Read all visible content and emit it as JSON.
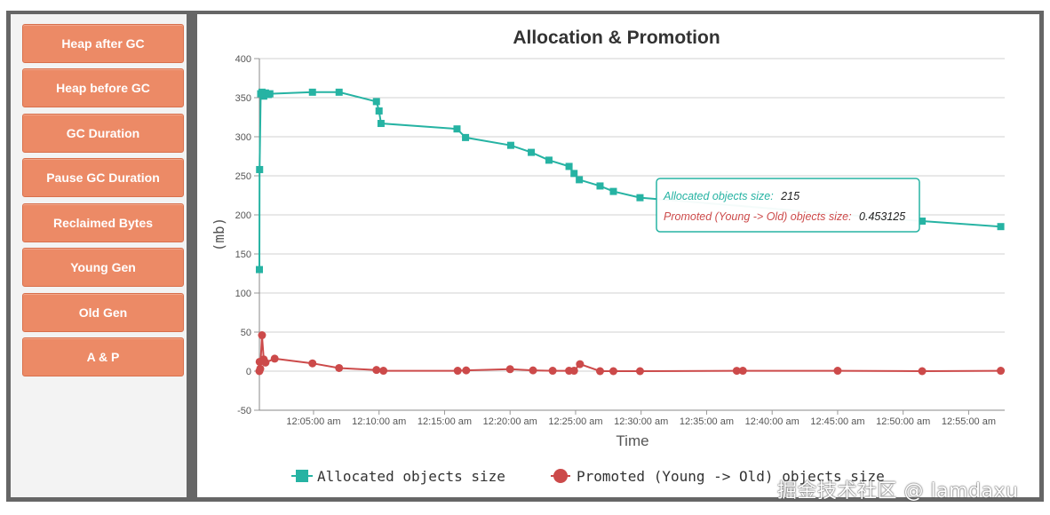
{
  "sidebar": {
    "items": [
      {
        "label": "Heap after GC"
      },
      {
        "label": "Heap before GC"
      },
      {
        "label": "GC Duration"
      },
      {
        "label": "Pause GC Duration"
      },
      {
        "label": "Reclaimed Bytes"
      },
      {
        "label": "Young Gen"
      },
      {
        "label": "Old Gen"
      },
      {
        "label": "A & P"
      }
    ]
  },
  "watermark": "掘金技术社区 @ lamdaxu",
  "colors": {
    "allocated": "#26b3a3",
    "promoted": "#cc4a4a",
    "button": "#ec8a66"
  },
  "chart_data": {
    "type": "line",
    "title": "Allocation & Promotion",
    "xlabel": "Time",
    "ylabel": "(mb)",
    "ylim": [
      -50,
      400
    ],
    "yticks": [
      -50,
      0,
      50,
      100,
      150,
      200,
      250,
      300,
      350,
      400
    ],
    "xlim": [
      "12:00:52",
      "12:57:45"
    ],
    "xticks": [
      "12:05:00 am",
      "12:10:00 am",
      "12:15:00 am",
      "12:20:00 am",
      "12:25:00 am",
      "12:30:00 am",
      "12:35:00 am",
      "12:40:00 am",
      "12:45:00 am",
      "12:50:00 am",
      "12:55:00 am"
    ],
    "grid": true,
    "legend_position": "bottom",
    "series": [
      {
        "name": "Allocated objects size",
        "marker": "square",
        "points": [
          [
            "12:00:52",
            130
          ],
          [
            "12:00:53",
            258
          ],
          [
            "12:00:58",
            355
          ],
          [
            "12:01:04",
            357
          ],
          [
            "12:01:12",
            352
          ],
          [
            "12:01:20",
            356
          ],
          [
            "12:01:33",
            354
          ],
          [
            "12:01:40",
            355
          ],
          [
            "12:04:55",
            357
          ],
          [
            "12:06:57",
            357
          ],
          [
            "12:09:48",
            345
          ],
          [
            "12:10:00",
            333
          ],
          [
            "12:10:09",
            317
          ],
          [
            "12:15:57",
            310
          ],
          [
            "12:16:36",
            299
          ],
          [
            "12:20:03",
            289
          ],
          [
            "12:21:37",
            280
          ],
          [
            "12:22:58",
            270
          ],
          [
            "12:24:30",
            262
          ],
          [
            "12:24:53",
            253
          ],
          [
            "12:25:17",
            245
          ],
          [
            "12:26:52",
            237
          ],
          [
            "12:27:53",
            230
          ],
          [
            "12:29:55",
            222
          ],
          [
            "12:51:27",
            192
          ],
          [
            "12:57:27",
            185
          ]
        ]
      },
      {
        "name": "Promoted (Young -> Old) objects size",
        "marker": "circle",
        "points": [
          [
            "12:00:52",
            0
          ],
          [
            "12:00:53",
            12
          ],
          [
            "12:00:56",
            3
          ],
          [
            "12:01:04",
            46
          ],
          [
            "12:01:12",
            15
          ],
          [
            "12:01:20",
            11
          ],
          [
            "12:02:02",
            16
          ],
          [
            "12:04:55",
            10
          ],
          [
            "12:06:57",
            4
          ],
          [
            "12:09:48",
            1.5
          ],
          [
            "12:10:20",
            0.5
          ],
          [
            "12:16:00",
            0.5
          ],
          [
            "12:16:39",
            1
          ],
          [
            "12:20:00",
            2.5
          ],
          [
            "12:21:45",
            1
          ],
          [
            "12:23:15",
            0.5
          ],
          [
            "12:24:30",
            0.5
          ],
          [
            "12:24:53",
            0.5
          ],
          [
            "12:25:20",
            9
          ],
          [
            "12:26:52",
            0
          ],
          [
            "12:27:53",
            0
          ],
          [
            "12:29:55",
            0
          ],
          [
            "12:37:18",
            0.45
          ],
          [
            "12:37:46",
            0.5
          ],
          [
            "12:45:00",
            0.5
          ],
          [
            "12:51:27",
            0
          ],
          [
            "12:57:27",
            0.5
          ]
        ]
      }
    ],
    "tooltip": {
      "allocated_label": "Allocated objects size:",
      "allocated_value": "215",
      "promoted_label": "Promoted (Young -> Old) objects size:",
      "promoted_value": "0.453125"
    }
  }
}
